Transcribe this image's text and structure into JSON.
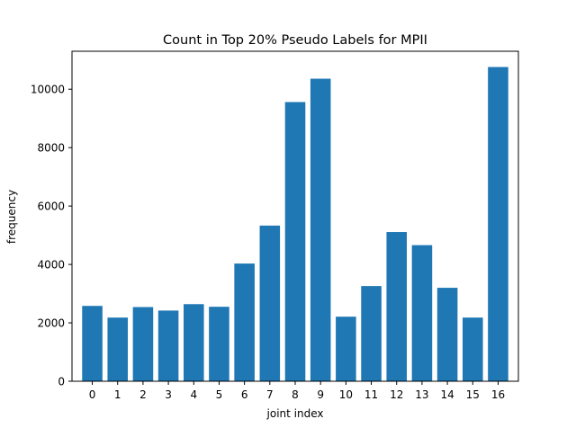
{
  "chart_data": {
    "type": "bar",
    "title": "Count in Top 20% Pseudo Labels for MPII",
    "xlabel": "joint index",
    "ylabel": "frequency",
    "categories": [
      "0",
      "1",
      "2",
      "3",
      "4",
      "5",
      "6",
      "7",
      "8",
      "9",
      "10",
      "11",
      "12",
      "13",
      "14",
      "15",
      "16"
    ],
    "values": [
      2580,
      2180,
      2540,
      2420,
      2640,
      2550,
      4030,
      5330,
      9560,
      10360,
      2210,
      3260,
      5110,
      4660,
      3200,
      2180,
      10760
    ],
    "ylim": [
      0,
      11300
    ],
    "yticks": [
      0,
      2000,
      4000,
      6000,
      8000,
      10000
    ],
    "grid": false,
    "colors": {
      "bar": "#1f77b4"
    }
  }
}
